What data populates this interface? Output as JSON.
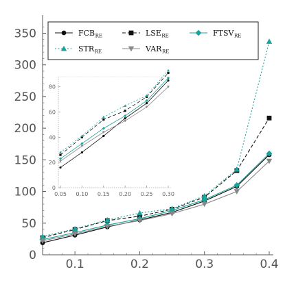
{
  "chart_data": [
    {
      "type": "line",
      "x": [
        0.05,
        0.1,
        0.15,
        0.2,
        0.25,
        0.3,
        0.35,
        0.4
      ],
      "xlim": [
        0.05,
        0.4
      ],
      "ylim": [
        0,
        370
      ],
      "x_ticks": [
        0.1,
        0.2,
        0.3,
        0.4
      ],
      "x_tick_labels": [
        "0.1",
        "0.2",
        "0.3",
        "0.4"
      ],
      "y_ticks": [
        0,
        50,
        100,
        150,
        200,
        250,
        300,
        350
      ],
      "y_tick_labels": [
        "0",
        "50",
        "100",
        "150",
        "200",
        "250",
        "300",
        "350"
      ],
      "grid": false,
      "legend_position": "top",
      "series": [
        {
          "name": "FCB",
          "subscript": "RE",
          "color": "#111111",
          "dash": "solid",
          "marker": "circle",
          "values": [
            19,
            31,
            44,
            55,
            67,
            85,
            108,
            158
          ]
        },
        {
          "name": "LSE",
          "subscript": "RE",
          "color": "#111111",
          "dash": "dashed",
          "marker": "square",
          "values": [
            27,
            40,
            54,
            61,
            72,
            91,
            133,
            216
          ]
        },
        {
          "name": "FTSV",
          "subscript": "RE",
          "color": "#1aa39a",
          "dash": "solid",
          "marker": "diamond",
          "values": [
            24,
            35,
            47,
            57,
            70,
            87,
            110,
            160
          ]
        },
        {
          "name": "STR",
          "subscript": "RE",
          "color": "#1aa39a",
          "dash": "dotted",
          "marker": "triangle-up",
          "values": [
            29,
            41,
            55,
            66,
            73,
            93,
            135,
            337
          ]
        },
        {
          "name": "VAR",
          "subscript": "RE",
          "color": "#888888",
          "dash": "solid",
          "marker": "triangle-down",
          "values": [
            22,
            33,
            45,
            54,
            65,
            80,
            100,
            148
          ]
        }
      ]
    },
    {
      "type": "line",
      "inset": true,
      "x": [
        0.05,
        0.1,
        0.15,
        0.2,
        0.25,
        0.3
      ],
      "xlim": [
        0.05,
        0.3
      ],
      "ylim": [
        0,
        88
      ],
      "x_ticks": [
        0.05,
        0.1,
        0.15,
        0.2,
        0.25,
        0.3
      ],
      "x_tick_labels": [
        "0.05",
        "0.10",
        "0.15",
        "0.20",
        "0.25",
        "0.30"
      ],
      "y_ticks": [
        0,
        20,
        40,
        60,
        80
      ],
      "y_tick_labels": [
        "0",
        "20",
        "40",
        "60",
        "80"
      ],
      "grid": false,
      "series": [
        {
          "name": "FCB",
          "values": [
            16,
            28,
            41,
            55,
            67,
            85
          ]
        },
        {
          "name": "LSE",
          "values": [
            26,
            40,
            54,
            61,
            72,
            91
          ]
        },
        {
          "name": "FTSV",
          "values": [
            23,
            35,
            47,
            57,
            69,
            87
          ]
        },
        {
          "name": "STR",
          "values": [
            28,
            41,
            56,
            65,
            73,
            93
          ]
        },
        {
          "name": "VAR",
          "values": [
            21,
            33,
            44,
            53,
            64,
            80
          ]
        }
      ]
    }
  ]
}
